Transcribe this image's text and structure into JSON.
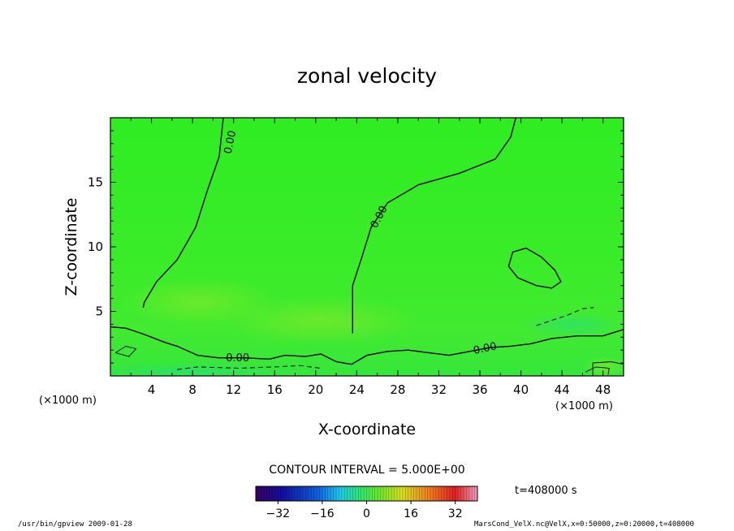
{
  "chart_data": {
    "type": "contour",
    "title": "zonal velocity",
    "xlabel": "X-coordinate",
    "ylabel": "Z-coordinate",
    "x_unit": "(×1000 m)",
    "x_unit_right": "(×1000 m)",
    "xlim": [
      0,
      50
    ],
    "ylim": [
      0,
      20
    ],
    "x_ticks": [
      "4",
      "8",
      "12",
      "16",
      "20",
      "24",
      "28",
      "32",
      "36",
      "40",
      "44",
      "48"
    ],
    "y_ticks": [
      "5",
      "10",
      "15"
    ],
    "contour_interval_text": "CONTOUR INTERVAL = 5.000E+00",
    "time_label": "t=408000  s",
    "contour_label": "0.00",
    "colorbar": {
      "min": -40,
      "max": 40,
      "tick_labels": [
        "−32",
        "−16",
        "0",
        "16",
        "32"
      ],
      "colormap": "jet",
      "background_color": "#33ee22"
    },
    "zero_contours": [
      [
        [
          11,
          20
        ],
        [
          10.6,
          17
        ],
        [
          9.5,
          14.5
        ],
        [
          8.3,
          11.5
        ],
        [
          6.5,
          9
        ],
        [
          4.5,
          7.3
        ],
        [
          3.3,
          5.7
        ],
        [
          3.2,
          5.3
        ]
      ],
      [
        [
          39.5,
          20
        ],
        [
          39,
          18.5
        ],
        [
          37.5,
          16.8
        ],
        [
          34,
          15.7
        ],
        [
          30,
          14.8
        ],
        [
          27,
          13.4
        ],
        [
          25.4,
          11.5
        ],
        [
          24.5,
          9.2
        ],
        [
          23.6,
          7
        ],
        [
          23.6,
          3.3
        ]
      ],
      [
        [
          0,
          3.8
        ],
        [
          1.5,
          3.7
        ],
        [
          3,
          3.3
        ],
        [
          4,
          3
        ],
        [
          5.3,
          2.6
        ],
        [
          6.5,
          2.3
        ],
        [
          8.5,
          1.6
        ],
        [
          10.5,
          1.4
        ],
        [
          13,
          1.4
        ],
        [
          15.5,
          1.3
        ],
        [
          17,
          1.6
        ],
        [
          19,
          1.5
        ],
        [
          20.5,
          1.7
        ],
        [
          22,
          1.1
        ],
        [
          23.5,
          0.9
        ],
        [
          25,
          1.6
        ],
        [
          27,
          1.9
        ],
        [
          29,
          2
        ],
        [
          31,
          1.8
        ],
        [
          33,
          1.6
        ],
        [
          35,
          1.9
        ],
        [
          37,
          2.2
        ],
        [
          39,
          2.3
        ],
        [
          41,
          2.5
        ],
        [
          43,
          2.9
        ],
        [
          45.5,
          3.1
        ],
        [
          48,
          3.1
        ],
        [
          50,
          3.6
        ]
      ],
      [
        [
          38.8,
          8.5
        ],
        [
          39.7,
          7.6
        ],
        [
          41.5,
          7
        ],
        [
          43,
          6.8
        ],
        [
          43.9,
          7.3
        ],
        [
          43.3,
          8.2
        ],
        [
          42,
          9.2
        ],
        [
          40.5,
          9.9
        ],
        [
          39.2,
          9.6
        ],
        [
          38.8,
          8.5
        ]
      ]
    ],
    "negative_contours": [
      [
        [
          41.5,
          3.9
        ],
        [
          43,
          4.3
        ],
        [
          44.5,
          4.7
        ],
        [
          46,
          5.2
        ],
        [
          47.1,
          5.3
        ]
      ],
      [
        [
          6.5,
          0.5
        ],
        [
          8.5,
          0.7
        ],
        [
          12.5,
          0.6
        ],
        [
          16,
          0.7
        ],
        [
          18.5,
          0.8
        ],
        [
          20.5,
          0.6
        ]
      ]
    ],
    "positive_contours": [
      [
        [
          0.5,
          1.8
        ],
        [
          1.5,
          2.3
        ],
        [
          2.5,
          2.1
        ],
        [
          1.8,
          1.5
        ],
        [
          0.5,
          1.8
        ]
      ],
      [
        [
          47,
          0
        ],
        [
          47,
          1
        ],
        [
          48.8,
          1.1
        ],
        [
          50,
          0.9
        ]
      ],
      [
        [
          46.3,
          0.3
        ],
        [
          47.3,
          0.7
        ],
        [
          48.6,
          0.6
        ],
        [
          48.5,
          0.1
        ]
      ]
    ]
  },
  "footer": {
    "left": "/usr/bin/gpview  2009-01-28",
    "right": "MarsCond_VelX.nc@VelX,x=0:50000,z=0:20000,t=408000"
  }
}
